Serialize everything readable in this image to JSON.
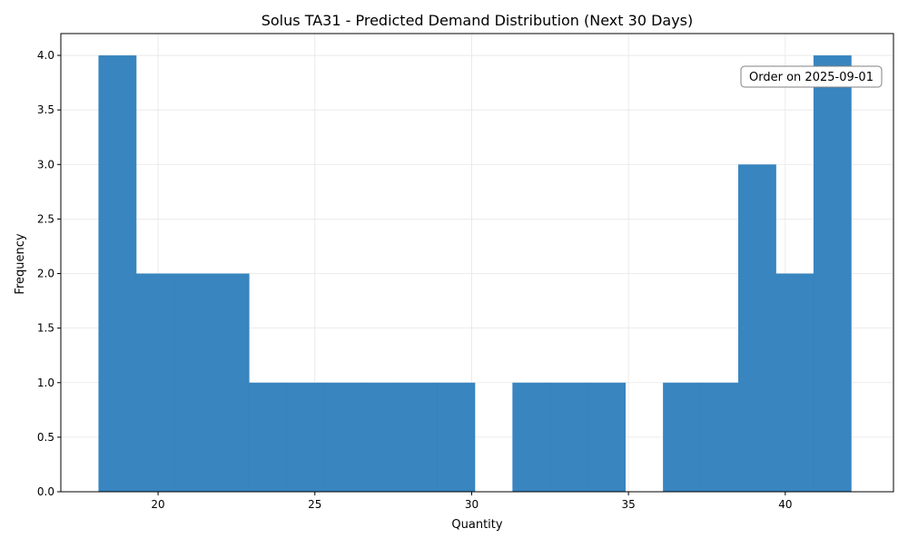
{
  "chart_data": {
    "type": "bar",
    "title": "Solus TA31 - Predicted Demand Distribution (Next 30 Days)",
    "xlabel": "Quantity",
    "ylabel": "Frequency",
    "xlim": [
      16.9,
      43.45
    ],
    "ylim": [
      0,
      4.2
    ],
    "xticks": [
      20,
      25,
      30,
      35,
      40
    ],
    "yticks": [
      0.0,
      0.5,
      1.0,
      1.5,
      2.0,
      2.5,
      3.0,
      3.5,
      4.0
    ],
    "grid": true,
    "bar_color": "#3483be",
    "bins": [
      {
        "x0": 18.1,
        "x1": 19.3,
        "count": 4
      },
      {
        "x0": 19.3,
        "x1": 20.5,
        "count": 2
      },
      {
        "x0": 20.5,
        "x1": 21.7,
        "count": 2
      },
      {
        "x0": 21.7,
        "x1": 22.9,
        "count": 2
      },
      {
        "x0": 22.9,
        "x1": 24.1,
        "count": 1
      },
      {
        "x0": 24.1,
        "x1": 25.3,
        "count": 1
      },
      {
        "x0": 25.3,
        "x1": 26.5,
        "count": 1
      },
      {
        "x0": 26.5,
        "x1": 27.7,
        "count": 1
      },
      {
        "x0": 27.7,
        "x1": 28.9,
        "count": 1
      },
      {
        "x0": 28.9,
        "x1": 30.1,
        "count": 1
      },
      {
        "x0": 30.1,
        "x1": 31.3,
        "count": 0
      },
      {
        "x0": 31.3,
        "x1": 32.5,
        "count": 1
      },
      {
        "x0": 32.5,
        "x1": 33.7,
        "count": 1
      },
      {
        "x0": 33.7,
        "x1": 34.9,
        "count": 1
      },
      {
        "x0": 34.9,
        "x1": 36.1,
        "count": 0
      },
      {
        "x0": 36.1,
        "x1": 37.3,
        "count": 1
      },
      {
        "x0": 37.3,
        "x1": 38.5,
        "count": 1
      },
      {
        "x0": 38.5,
        "x1": 39.7,
        "count": 3
      },
      {
        "x0": 39.7,
        "x1": 40.9,
        "count": 2
      },
      {
        "x0": 40.9,
        "x1": 42.1,
        "count": 4
      }
    ],
    "annotation": "Order on 2025-09-01"
  }
}
